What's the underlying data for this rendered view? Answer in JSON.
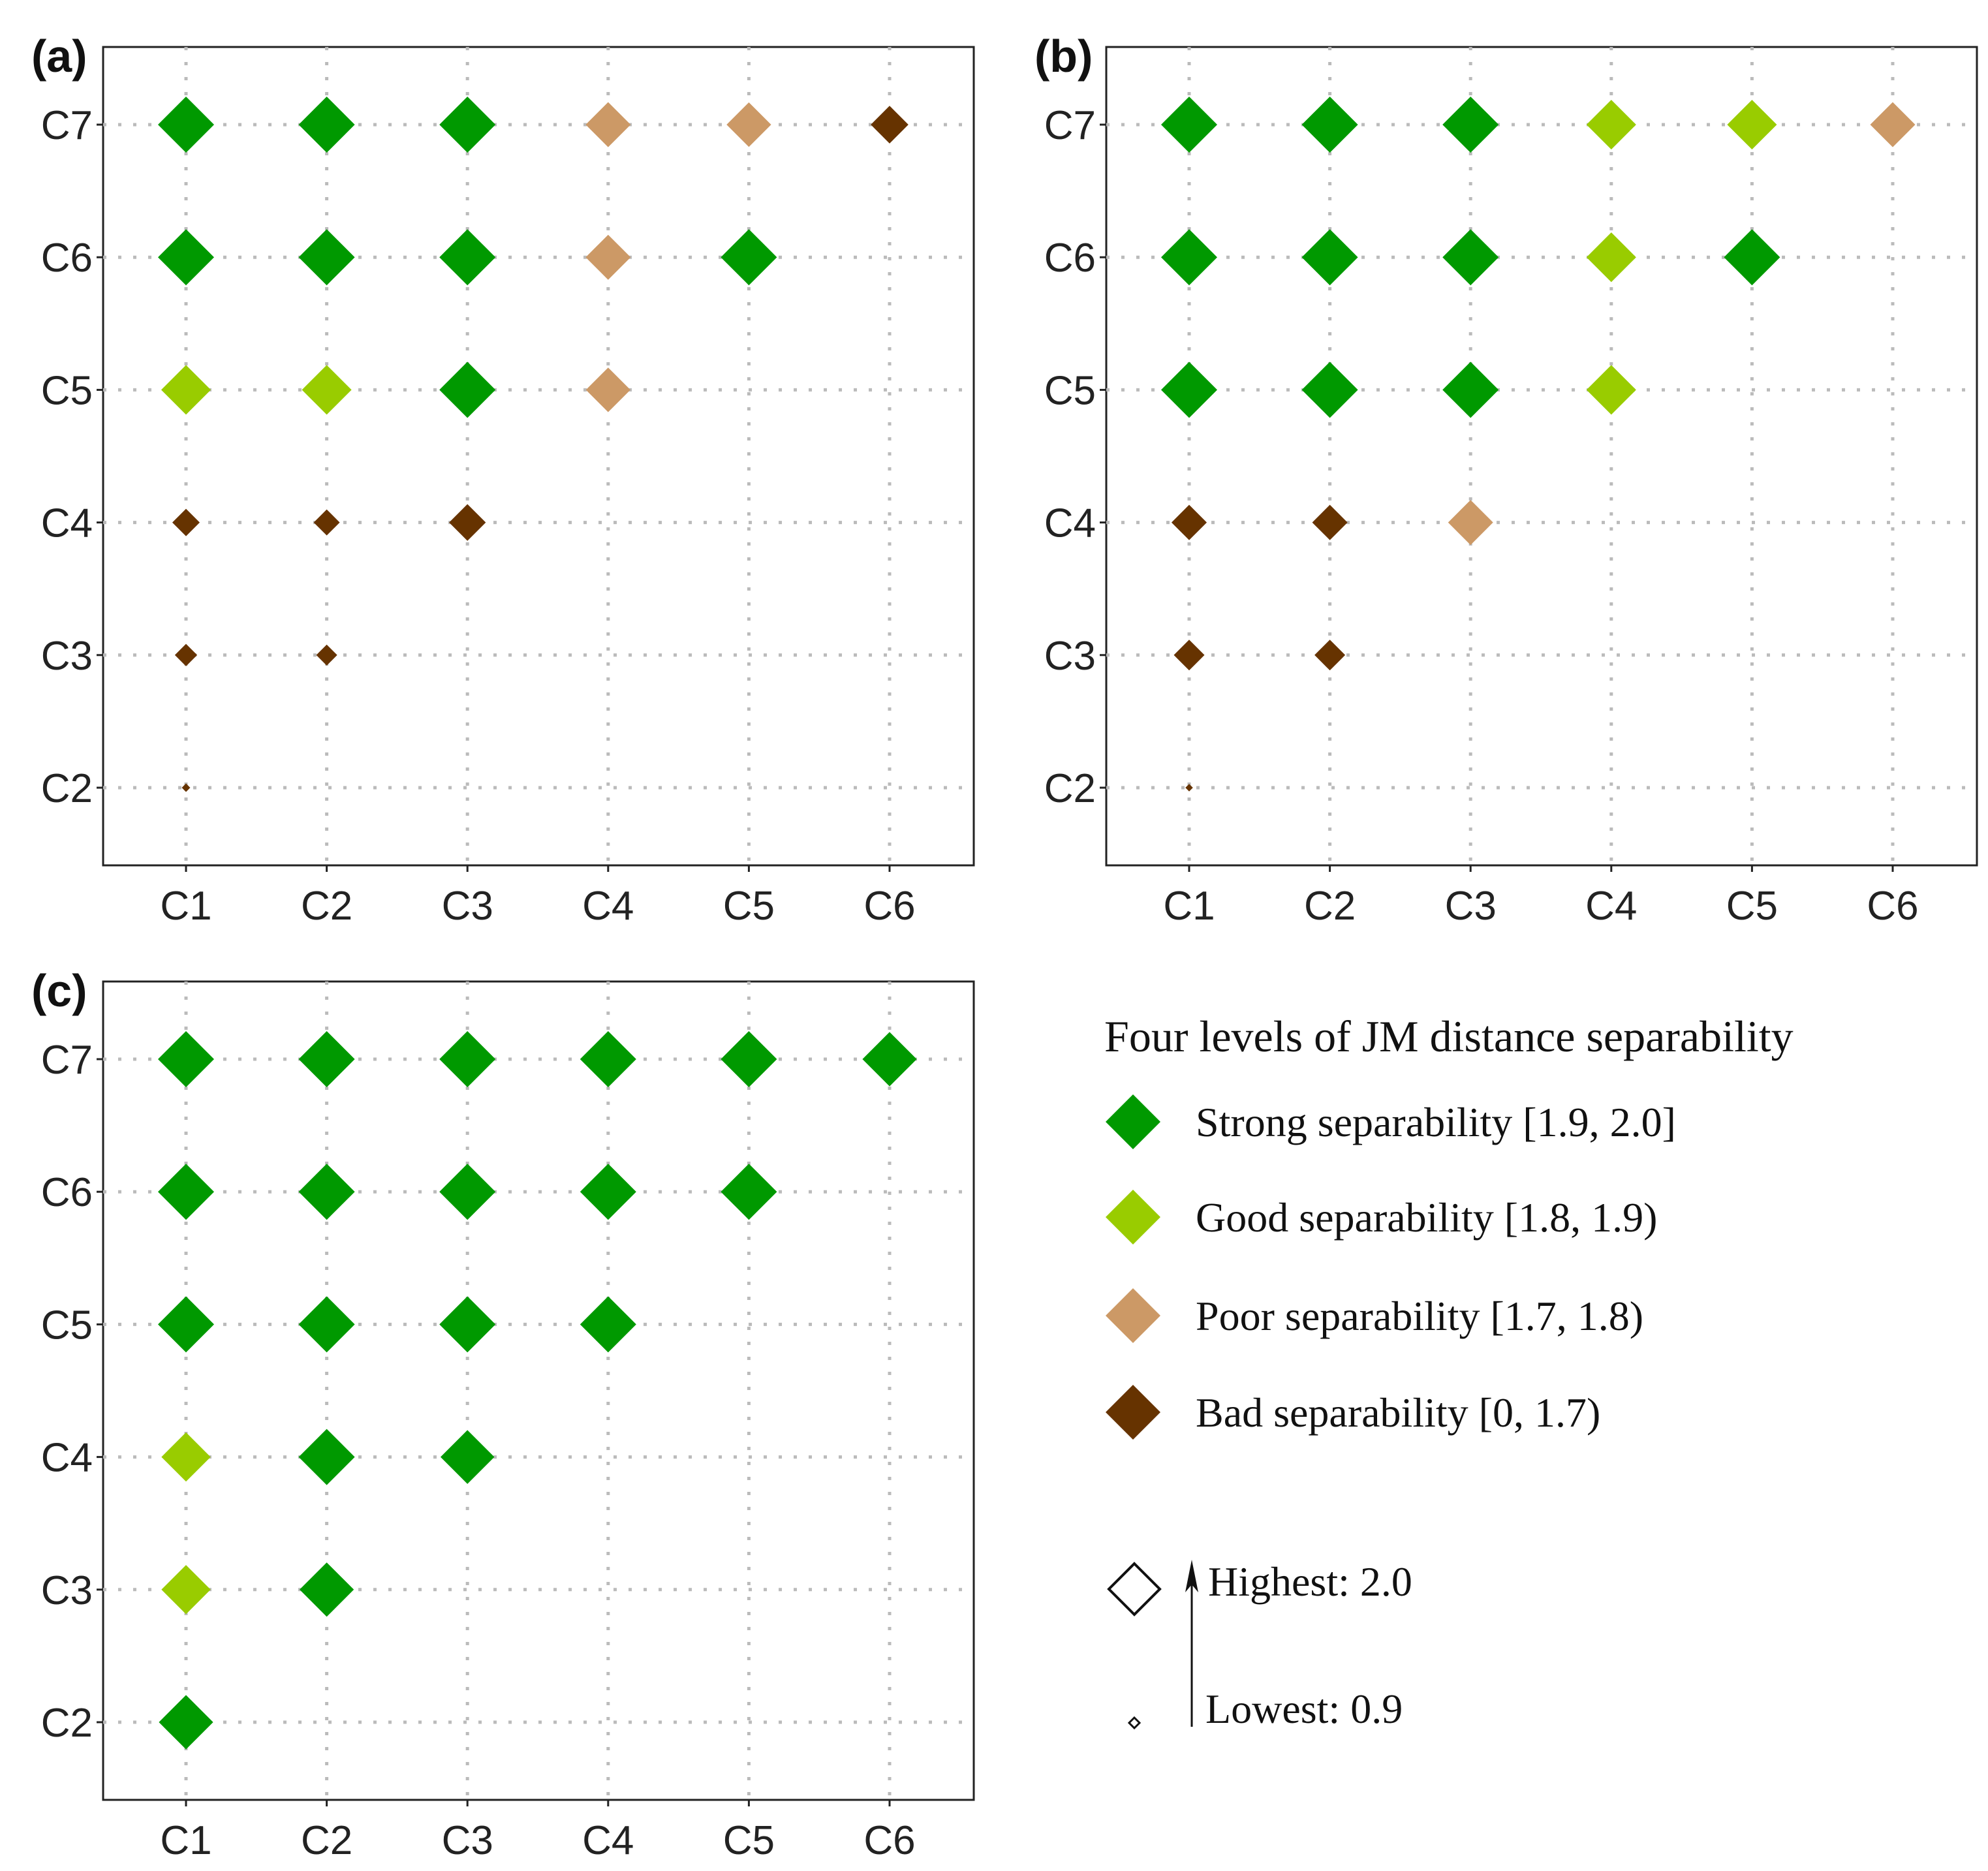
{
  "chart_data": {
    "type": "scatter",
    "legend": {
      "title": "Four levels of JM distance separability",
      "levels": [
        {
          "key": "strong",
          "label": "Strong separability [1.9, 2.0]",
          "color": "#009900"
        },
        {
          "key": "good",
          "label": "Good separability [1.8, 1.9)",
          "color": "#99cc00"
        },
        {
          "key": "poor",
          "label": "Poor separability [1.7, 1.8)",
          "color": "#cc9966"
        },
        {
          "key": "bad",
          "label": "Bad separability [0, 1.7)",
          "color": "#663300"
        }
      ],
      "size_highest": "Highest: 2.0",
      "size_lowest": "Lowest: 0.9",
      "size_range": [
        0.9,
        2.0
      ]
    },
    "x_categories": [
      "C1",
      "C2",
      "C3",
      "C4",
      "C5",
      "C6"
    ],
    "y_categories": [
      "C2",
      "C3",
      "C4",
      "C5",
      "C6",
      "C7"
    ],
    "grid": "dotted",
    "panels": [
      {
        "label": "(a)",
        "points": [
          [
            "C1",
            "C7",
            "strong",
            2.0
          ],
          [
            "C2",
            "C7",
            "strong",
            2.0
          ],
          [
            "C3",
            "C7",
            "strong",
            2.0
          ],
          [
            "C4",
            "C7",
            "poor",
            1.76
          ],
          [
            "C5",
            "C7",
            "poor",
            1.75
          ],
          [
            "C6",
            "C7",
            "bad",
            1.6
          ],
          [
            "C1",
            "C6",
            "strong",
            2.0
          ],
          [
            "C2",
            "C6",
            "strong",
            2.0
          ],
          [
            "C3",
            "C6",
            "strong",
            2.0
          ],
          [
            "C4",
            "C6",
            "poor",
            1.76
          ],
          [
            "C5",
            "C6",
            "strong",
            2.0
          ],
          [
            "C1",
            "C5",
            "good",
            1.86
          ],
          [
            "C2",
            "C5",
            "good",
            1.86
          ],
          [
            "C3",
            "C5",
            "strong",
            2.0
          ],
          [
            "C4",
            "C5",
            "poor",
            1.75
          ],
          [
            "C1",
            "C4",
            "bad",
            1.38
          ],
          [
            "C2",
            "C4",
            "bad",
            1.35
          ],
          [
            "C3",
            "C4",
            "bad",
            1.58
          ],
          [
            "C1",
            "C3",
            "bad",
            1.27
          ],
          [
            "C2",
            "C3",
            "bad",
            1.24
          ],
          [
            "C1",
            "C2",
            "bad",
            0.97
          ]
        ]
      },
      {
        "label": "(b)",
        "points": [
          [
            "C1",
            "C7",
            "strong",
            2.0
          ],
          [
            "C2",
            "C7",
            "strong",
            2.0
          ],
          [
            "C3",
            "C7",
            "strong",
            2.0
          ],
          [
            "C4",
            "C7",
            "good",
            1.86
          ],
          [
            "C5",
            "C7",
            "good",
            1.86
          ],
          [
            "C6",
            "C7",
            "poor",
            1.76
          ],
          [
            "C1",
            "C6",
            "strong",
            2.0
          ],
          [
            "C2",
            "C6",
            "strong",
            2.0
          ],
          [
            "C3",
            "C6",
            "strong",
            2.0
          ],
          [
            "C4",
            "C6",
            "good",
            1.86
          ],
          [
            "C5",
            "C6",
            "strong",
            2.0
          ],
          [
            "C1",
            "C5",
            "strong",
            2.0
          ],
          [
            "C2",
            "C5",
            "strong",
            2.0
          ],
          [
            "C3",
            "C5",
            "strong",
            2.0
          ],
          [
            "C4",
            "C5",
            "good",
            1.86
          ],
          [
            "C1",
            "C4",
            "bad",
            1.55
          ],
          [
            "C2",
            "C4",
            "bad",
            1.55
          ],
          [
            "C3",
            "C4",
            "poor",
            1.76
          ],
          [
            "C1",
            "C3",
            "bad",
            1.45
          ],
          [
            "C2",
            "C3",
            "bad",
            1.45
          ],
          [
            "C1",
            "C2",
            "bad",
            0.95
          ]
        ]
      },
      {
        "label": "(c)",
        "points": [
          [
            "C1",
            "C7",
            "strong",
            2.0
          ],
          [
            "C2",
            "C7",
            "strong",
            2.0
          ],
          [
            "C3",
            "C7",
            "strong",
            2.0
          ],
          [
            "C4",
            "C7",
            "strong",
            2.0
          ],
          [
            "C5",
            "C7",
            "strong",
            2.0
          ],
          [
            "C6",
            "C7",
            "strong",
            1.96
          ],
          [
            "C1",
            "C6",
            "strong",
            2.0
          ],
          [
            "C2",
            "C6",
            "strong",
            2.0
          ],
          [
            "C3",
            "C6",
            "strong",
            2.0
          ],
          [
            "C4",
            "C6",
            "strong",
            2.0
          ],
          [
            "C5",
            "C6",
            "strong",
            2.0
          ],
          [
            "C1",
            "C5",
            "strong",
            2.0
          ],
          [
            "C2",
            "C5",
            "strong",
            2.0
          ],
          [
            "C3",
            "C5",
            "strong",
            2.0
          ],
          [
            "C4",
            "C5",
            "strong",
            2.0
          ],
          [
            "C1",
            "C4",
            "good",
            1.85
          ],
          [
            "C2",
            "C4",
            "strong",
            2.0
          ],
          [
            "C3",
            "C4",
            "strong",
            1.95
          ],
          [
            "C1",
            "C3",
            "good",
            1.85
          ],
          [
            "C2",
            "C3",
            "strong",
            1.96
          ],
          [
            "C1",
            "C2",
            "strong",
            1.96
          ]
        ]
      }
    ]
  }
}
